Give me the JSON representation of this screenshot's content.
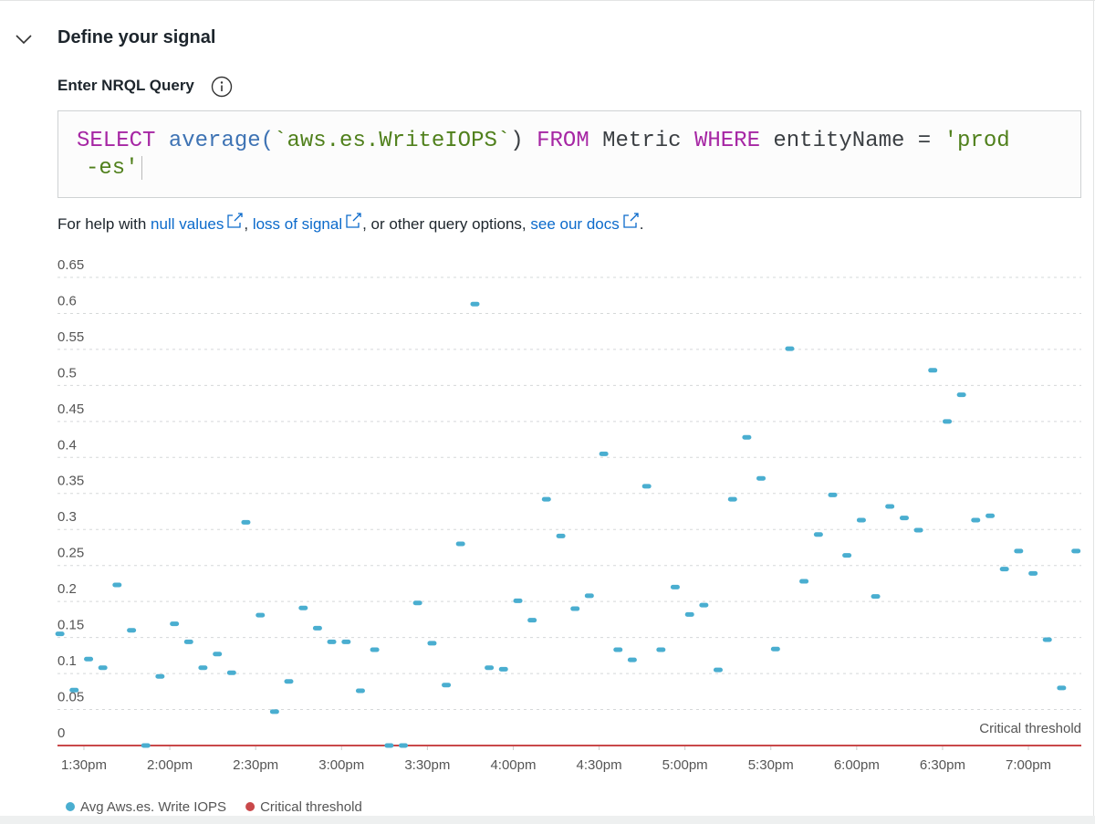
{
  "header": {
    "title": "Define your signal"
  },
  "query": {
    "label": "Enter NRQL Query",
    "lines": [
      [
        {
          "text": "SELECT ",
          "kind": "keyword"
        },
        {
          "text": "average(",
          "kind": "func"
        },
        {
          "text": "`aws.es.WriteIOPS`",
          "kind": "string"
        },
        {
          "text": ") ",
          "kind": "plain"
        },
        {
          "text": "FROM ",
          "kind": "keyword"
        },
        {
          "text": "Metric ",
          "kind": "plain"
        },
        {
          "text": "WHERE ",
          "kind": "keyword"
        },
        {
          "text": "entityName = ",
          "kind": "plain"
        },
        {
          "text": "'prod",
          "kind": "string"
        }
      ],
      [
        {
          "text": "-es'",
          "kind": "string"
        }
      ]
    ]
  },
  "help": [
    {
      "text": "For help with "
    },
    {
      "text": "null values",
      "link": true
    },
    {
      "text": ", "
    },
    {
      "text": "loss of signal",
      "link": true
    },
    {
      "text": ", or other query options, "
    },
    {
      "text": "see our docs",
      "link": true
    },
    {
      "text": "."
    }
  ],
  "chart_data": {
    "type": "scatter",
    "x": [
      13.36,
      13.443,
      13.527,
      13.61,
      13.693,
      13.777,
      13.86,
      13.943,
      14.027,
      14.11,
      14.193,
      14.277,
      14.36,
      14.443,
      14.527,
      14.61,
      14.693,
      14.777,
      14.86,
      14.943,
      15.027,
      15.11,
      15.193,
      15.277,
      15.36,
      15.443,
      15.527,
      15.61,
      15.693,
      15.777,
      15.86,
      15.943,
      16.027,
      16.11,
      16.193,
      16.277,
      16.36,
      16.443,
      16.527,
      16.61,
      16.693,
      16.777,
      16.86,
      16.943,
      17.027,
      17.11,
      17.193,
      17.277,
      17.36,
      17.443,
      17.527,
      17.61,
      17.693,
      17.777,
      17.86,
      17.943,
      18.027,
      18.11,
      18.193,
      18.277,
      18.36,
      18.443,
      18.527,
      18.61,
      18.693,
      18.777,
      18.86,
      18.943,
      19.027,
      19.11,
      19.193,
      19.277
    ],
    "series": [
      {
        "name": "Avg Aws.es. Write IOPS",
        "color": "#4aaed0",
        "values": [
          0.155,
          0.077,
          0.12,
          0.108,
          0.223,
          0.16,
          0,
          0.096,
          0.169,
          0.144,
          0.108,
          0.127,
          0.101,
          0.31,
          0.181,
          0.047,
          0.089,
          0.191,
          0.163,
          0.144,
          0.144,
          0.076,
          0.133,
          0,
          0,
          0.198,
          0.142,
          0.084,
          0.28,
          0.613,
          0.108,
          0.106,
          0.201,
          0.174,
          0.342,
          0.291,
          0.19,
          0.208,
          0.405,
          0.133,
          0.119,
          0.36,
          0.133,
          0.22,
          0.182,
          0.195,
          0.105,
          0.342,
          0.428,
          0.371,
          0.134,
          0.551,
          0.228,
          0.293,
          0.348,
          0.264,
          0.313,
          0.207,
          0.332,
          0.316,
          0.299,
          0.521,
          0.45,
          0.487,
          0.313,
          0.319,
          0.245,
          0.27,
          0.239,
          0.147,
          0.08,
          0.27
        ]
      }
    ],
    "threshold": {
      "name": "Critical threshold",
      "value": 0,
      "color": "#c9484a"
    },
    "xlim": [
      13.346,
      19.308
    ],
    "xticks": [
      {
        "value": 13.5,
        "label": "1:30pm"
      },
      {
        "value": 14,
        "label": "2:00pm"
      },
      {
        "value": 14.5,
        "label": "2:30pm"
      },
      {
        "value": 15,
        "label": "3:00pm"
      },
      {
        "value": 15.5,
        "label": "3:30pm"
      },
      {
        "value": 16,
        "label": "4:00pm"
      },
      {
        "value": 16.5,
        "label": "4:30pm"
      },
      {
        "value": 17,
        "label": "5:00pm"
      },
      {
        "value": 17.5,
        "label": "5:30pm"
      },
      {
        "value": 18,
        "label": "6:00pm"
      },
      {
        "value": 18.5,
        "label": "6:30pm"
      },
      {
        "value": 19,
        "label": "7:00pm"
      }
    ],
    "ylim": [
      0,
      0.65
    ],
    "yticks": [
      0,
      0.05,
      0.1,
      0.15,
      0.2,
      0.25,
      0.3,
      0.35,
      0.4,
      0.45,
      0.5,
      0.55,
      0.6,
      0.65
    ],
    "grid": true
  }
}
